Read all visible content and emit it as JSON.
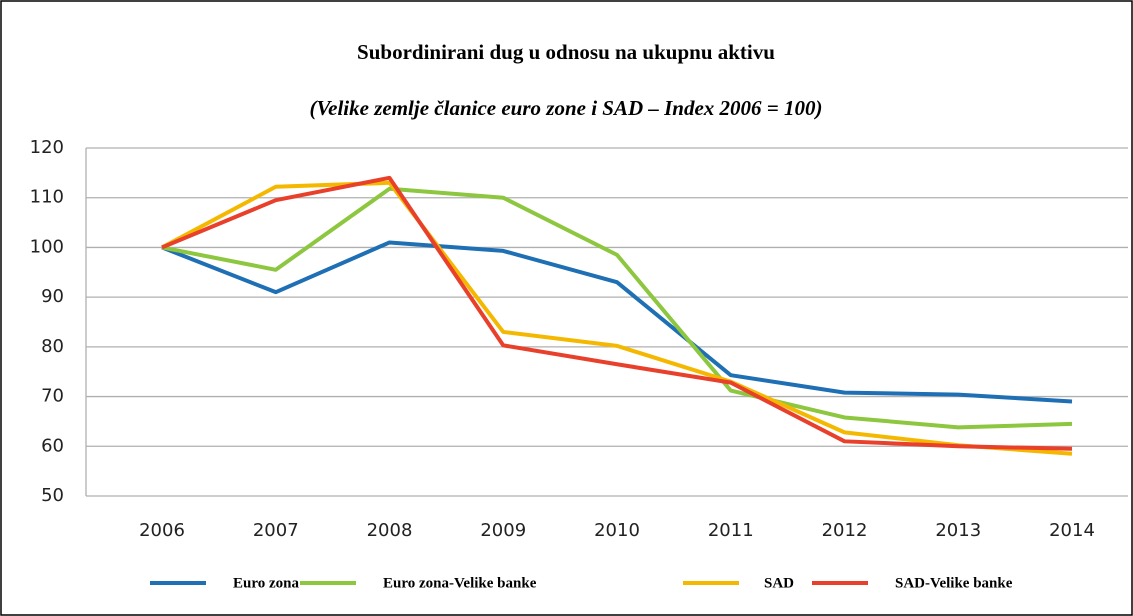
{
  "chart_data": {
    "type": "line",
    "title": "Subordinirani dug u odnosu na ukupnu aktivu",
    "subtitle": "(Velike zemlje članice euro zone i SAD – Index 2006 = 100)",
    "categories": [
      "2006",
      "2007",
      "2008",
      "2009",
      "2010",
      "2011",
      "2012",
      "2013",
      "2014"
    ],
    "series": [
      {
        "name": "Euro zona",
        "color": "#1f6fb5",
        "values": [
          100,
          91,
          101,
          99.3,
          93,
          74.3,
          70.8,
          70.4,
          69
        ]
      },
      {
        "name": "Euro zona-Velike banke",
        "color": "#8dc63f",
        "values": [
          100,
          95.5,
          111.8,
          110,
          98.5,
          71.2,
          65.8,
          63.8,
          64.5
        ]
      },
      {
        "name": "SAD",
        "color": "#f5b800",
        "values": [
          100,
          112.2,
          113,
          83,
          80.2,
          73,
          62.8,
          60.2,
          58.5
        ]
      },
      {
        "name": "SAD-Velike banke",
        "color": "#e8402a",
        "values": [
          100,
          109.5,
          114,
          80.3,
          76.5,
          72.8,
          61,
          60,
          59.5
        ]
      }
    ],
    "ylim": [
      50,
      120
    ],
    "yticks": [
      50,
      60,
      70,
      80,
      90,
      100,
      110,
      120
    ],
    "grid": true,
    "legend": "bottom"
  }
}
